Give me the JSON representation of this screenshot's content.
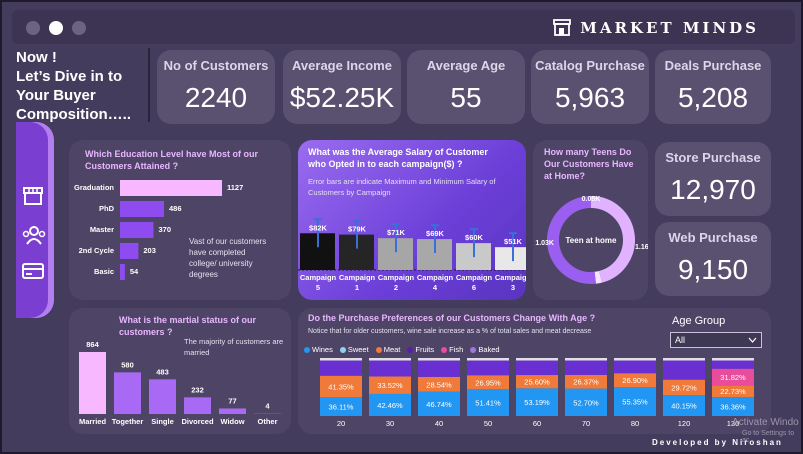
{
  "brand": {
    "name": "MARKET MINDS"
  },
  "intro": {
    "line1": "Now !",
    "line2": "Let’s Dive in to",
    "line3": "Your Buyer",
    "line4": "Composition….."
  },
  "kpis": {
    "customers": {
      "title": "No of Customers",
      "value": "2240"
    },
    "income": {
      "title": "Average Income",
      "value": "$52.25K"
    },
    "age": {
      "title": "Average Age",
      "value": "55"
    },
    "catalog": {
      "title": "Catalog Purchase",
      "value": "5,963"
    },
    "deals": {
      "title": "Deals Purchase",
      "value": "5,208"
    },
    "store": {
      "title": "Store Purchase",
      "value": "12,970"
    },
    "web": {
      "title": "Web Purchase",
      "value": "9,150"
    }
  },
  "sidebar": {
    "icons": [
      "store-icon",
      "team-icon",
      "card-icon"
    ]
  },
  "education": {
    "title1": "Which Education Level have Most of our",
    "title2": "Customers Attained ?",
    "note1": "Vast of our customers",
    "note2": "have completed",
    "note3": "college/ university",
    "note4": "degrees"
  },
  "campaign": {
    "title1": "What was the Average Salary of Customer",
    "title2": "who Opted in to each campaign($) ?",
    "note1": "Error bars are indicate Maximum and Minimum Salary of",
    "note2": "Customers by Campaign"
  },
  "teens": {
    "title1": "How many Teens Do",
    "title2": "Our Customers Have",
    "title3": "at Home?",
    "center": "Teen at home"
  },
  "marital": {
    "title1": "What is the martial status of our",
    "title2": "customers ?",
    "note1": "The majority of customers are",
    "note2": "married"
  },
  "purchase": {
    "title": "Do the Purchase Preferences of our Customers Change With Age ?",
    "note": "Notice that for older customers, wine sale increase as a % of total sales and meat decrease"
  },
  "age_filter": {
    "label": "Age Group",
    "value": "All"
  },
  "footer": {
    "developer": "Developed by Niroshan",
    "watermark1": "Activate Windo",
    "watermark2": "Go to Settings to ac"
  },
  "colors": {
    "wines": "#2196f3",
    "sweet": "#8fd3f4",
    "meat": "#f07a3a",
    "fruits": "#5a1fa8",
    "fish": "#e84c9a",
    "baked": "#9b7bd6"
  },
  "chart_data": [
    {
      "type": "bar",
      "orientation": "horizontal",
      "categories": [
        "Graduation",
        "PhD",
        "Master",
        "2nd Cycle",
        "Basic"
      ],
      "values": [
        1127,
        486,
        370,
        203,
        54
      ]
    },
    {
      "type": "bar",
      "categories": [
        "Campaign 5",
        "Campaign 1",
        "Campaign 2",
        "Campaign 4",
        "Campaign 6",
        "Campaign 3"
      ],
      "labels": [
        "$82K",
        "$79K",
        "$71K",
        "$69K",
        "$60K",
        "$51K"
      ],
      "values": [
        82,
        79,
        71,
        69,
        60,
        51
      ]
    },
    {
      "type": "pie",
      "style": "donut",
      "categories": [
        "1.03K",
        "0.05K",
        "1.16K"
      ],
      "values": [
        1.03,
        0.05,
        1.16
      ]
    },
    {
      "type": "bar",
      "categories": [
        "Married",
        "Together",
        "Single",
        "Divorced",
        "Widow",
        "Other"
      ],
      "values": [
        864,
        580,
        483,
        232,
        77,
        4
      ]
    },
    {
      "type": "bar",
      "stacked": true,
      "percent": true,
      "categories": [
        "20",
        "30",
        "40",
        "50",
        "60",
        "70",
        "80",
        "120",
        "130"
      ],
      "legend": [
        "Wines",
        "Sweet",
        "Meat",
        "Fruits",
        "Fish",
        "Baked"
      ],
      "series": [
        {
          "name": "Wines",
          "values": [
            36.11,
            42.46,
            46.74,
            51.41,
            53.19,
            52.7,
            55.35,
            40.15,
            36.36
          ]
        },
        {
          "name": "Meat",
          "values": [
            41.35,
            33.52,
            28.54,
            26.95,
            25.6,
            26.37,
            26.9,
            29.72,
            22.73
          ]
        },
        {
          "name": "Fish",
          "values": [
            null,
            null,
            null,
            null,
            null,
            null,
            null,
            null,
            31.82
          ]
        }
      ]
    }
  ]
}
